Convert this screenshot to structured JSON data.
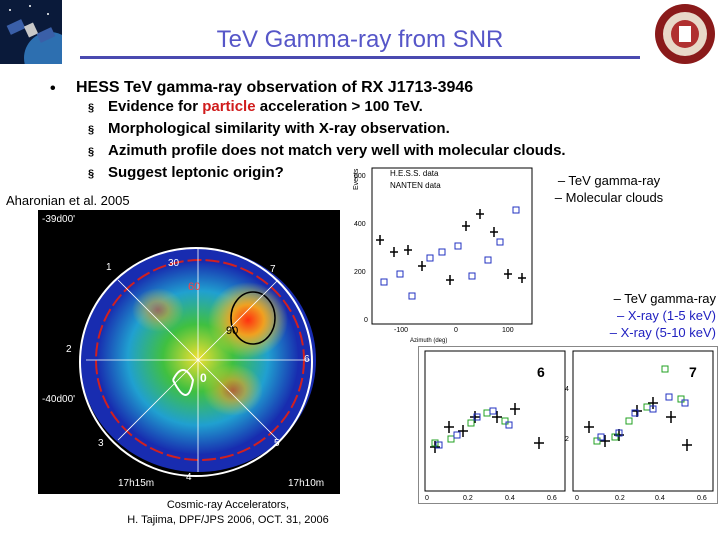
{
  "title": "TeV Gamma-ray from SNR",
  "main_bullet": "•",
  "main_point": "HESS TeV gamma-ray observation of RX J1713-3946",
  "sub_points": [
    {
      "marker": "§",
      "prefix": "Evidence for ",
      "highlight": "particle",
      "suffix": " acceleration > 100 TeV."
    },
    {
      "marker": "§",
      "prefix": "Morphological similarity with X-ray observation.",
      "highlight": "",
      "suffix": ""
    },
    {
      "marker": "§",
      "prefix": "Azimuth profile does not match very well with molecular clouds.",
      "highlight": "",
      "suffix": ""
    },
    {
      "marker": "§",
      "prefix": "Suggest leptonic origin?",
      "highlight": "",
      "suffix": ""
    }
  ],
  "citation": "Aharonian et al. 2005",
  "legend1": {
    "line1": "– TeV gamma-ray",
    "line2": "– Molecular clouds"
  },
  "legend2": {
    "line1": "– TeV gamma-ray",
    "line2": "– X-ray (1-5 keV)",
    "line3": "– X-ray (5-10 keV)"
  },
  "footer": {
    "line1": "Cosmic-ray Accelerators,",
    "line2": "H. Tajima, DPF/JPS 2006, OCT. 31, 2006"
  },
  "skymap": {
    "dec_top": "-39d00'",
    "dec_bottom": "-40d00'",
    "ra_left": "17h15m",
    "ra_right": "17h10m",
    "sectors": [
      "30",
      "1",
      "7",
      "2",
      "6",
      "3",
      "5",
      "4"
    ],
    "contours": [
      "60",
      "90",
      "0"
    ]
  },
  "azimuth_plot": {
    "ylabel": "Events",
    "xlabel": "Azimuth (deg)",
    "legend": [
      "H.E.S.S. data",
      "NANTEN data"
    ],
    "yticks": [
      "600",
      "400",
      "200",
      "0"
    ],
    "xticks": [
      "-100",
      "0",
      "100"
    ]
  },
  "profile_plots": {
    "left_label": "6",
    "right_label": "7",
    "left_xticks": [
      "0",
      "0.2",
      "0.4",
      "0.6"
    ],
    "right_xticks": [
      "0",
      "0.2",
      "0.4",
      "0.6"
    ],
    "yticks": [
      "4",
      "2"
    ]
  },
  "colors": {
    "title": "#5656c8",
    "highlight": "#d01c1c",
    "legend2": "#2020c0"
  }
}
